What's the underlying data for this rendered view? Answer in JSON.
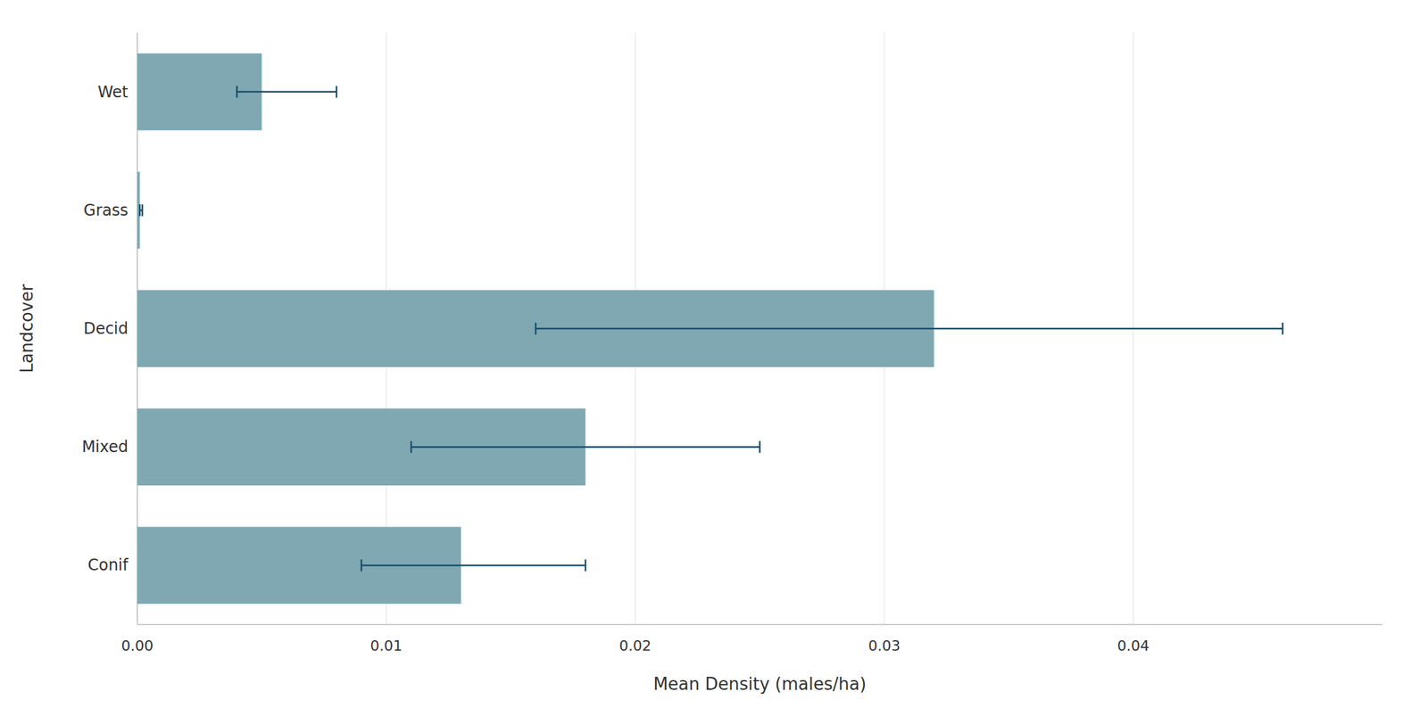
{
  "chart_data": {
    "type": "bar",
    "orientation": "horizontal",
    "categories": [
      "Conif",
      "Mixed",
      "Decid",
      "Grass",
      "Wet"
    ],
    "values": [
      0.013,
      0.018,
      0.032,
      0.0001,
      0.005
    ],
    "err_low": [
      0.009,
      0.011,
      0.016,
      0.0001,
      0.004
    ],
    "err_high": [
      0.018,
      0.025,
      0.046,
      0.0002,
      0.008
    ],
    "color": "#7fa8b2",
    "xlabel": "Mean Density (males/ha)",
    "ylabel": "Landcover",
    "xlim": [
      0,
      0.05
    ],
    "xticks": [
      {
        "value": 0.0,
        "label": "0.00"
      },
      0.01,
      0.02,
      0.03,
      0.04
    ],
    "grid": true
  }
}
